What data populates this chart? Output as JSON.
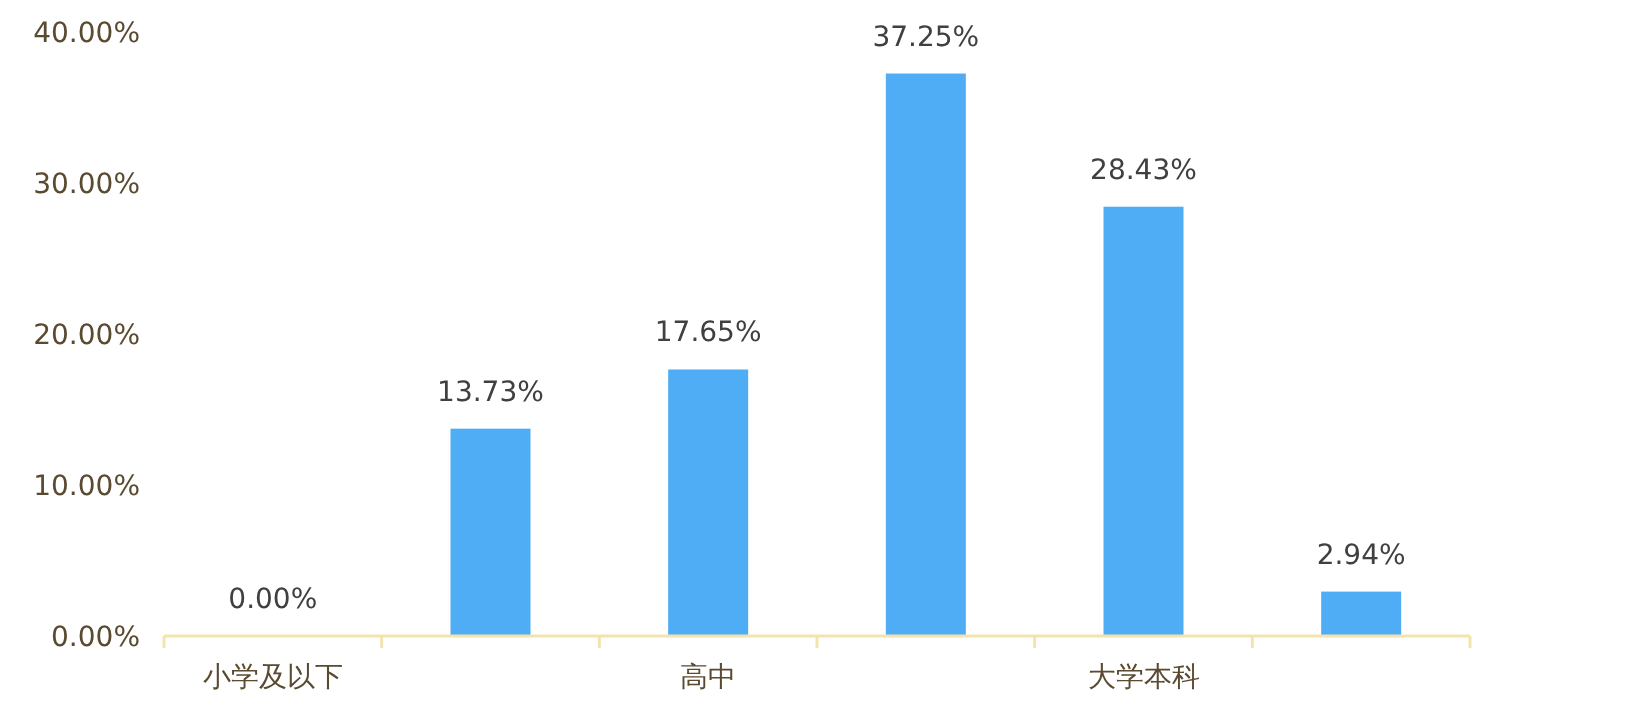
{
  "chart_data": {
    "type": "bar",
    "categories": [
      "小学及以下",
      null,
      "高中",
      null,
      "大学本科",
      null
    ],
    "values": [
      0,
      13.73,
      17.65,
      37.25,
      28.43,
      2.94
    ],
    "value_labels": [
      "0.00%",
      "13.73%",
      "17.65%",
      "37.25%",
      "28.43%",
      "2.94%"
    ],
    "color": "#4fadf5",
    "ylim": [
      0,
      40
    ],
    "yticks": [
      {
        "value": 0,
        "label": "0.00%"
      },
      {
        "value": 10,
        "label": "10.00%"
      },
      {
        "value": 20,
        "label": "20.00%"
      },
      {
        "value": 30,
        "label": "30.00%"
      },
      {
        "value": 40,
        "label": "40.00%"
      }
    ]
  }
}
